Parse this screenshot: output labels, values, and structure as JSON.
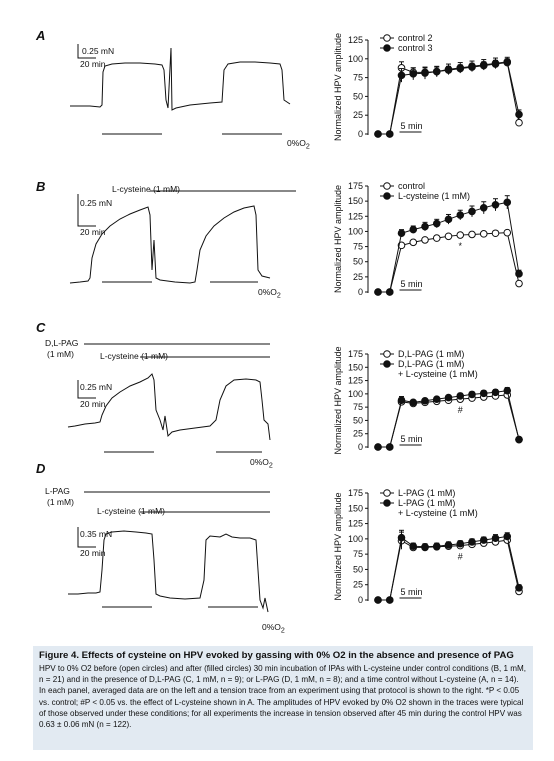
{
  "panels": [
    {
      "letter": "A",
      "trace": {
        "scale_force": "0.25 mN",
        "scale_time": "20 min",
        "o2_label": "0%O",
        "o2_sub": "2",
        "drug_labels": []
      },
      "chart": {
        "ylabel": "Normalized HPV amplitude",
        "yticks": [
          0,
          25,
          50,
          75,
          100,
          125
        ],
        "ymax": 125,
        "time_scale": "5 min",
        "annotation": "",
        "legend": [
          {
            "label": "control 2",
            "marker": "open"
          },
          {
            "label": "control 3",
            "marker": "filled"
          }
        ]
      }
    },
    {
      "letter": "B",
      "trace": {
        "scale_force": "0.25 mN",
        "scale_time": "20 min",
        "o2_label": "0%O",
        "o2_sub": "2",
        "drug_labels": [
          "L-cysteine (1 mM)"
        ]
      },
      "chart": {
        "ylabel": "Normalized HPV amplitude",
        "yticks": [
          0,
          25,
          50,
          75,
          100,
          125,
          150,
          175
        ],
        "ymax": 175,
        "time_scale": "5 min",
        "annotation": "*",
        "legend": [
          {
            "label": "control",
            "marker": "open"
          },
          {
            "label": "L-cysteine (1 mM)",
            "marker": "filled"
          }
        ]
      }
    },
    {
      "letter": "C",
      "trace": {
        "scale_force": "0.25 mN",
        "scale_time": "20 min",
        "o2_label": "0%O",
        "o2_sub": "2",
        "drug_labels": [
          "D,L-PAG",
          "(1 mM)",
          "L-cysteine (1 mM)"
        ]
      },
      "chart": {
        "ylabel": "Normalized HPV amplitude",
        "yticks": [
          0,
          25,
          50,
          75,
          100,
          125,
          150,
          175
        ],
        "ymax": 175,
        "time_scale": "5 min",
        "annotation": "#",
        "legend": [
          {
            "label": "D,L-PAG (1 mM)",
            "marker": "open"
          },
          {
            "label": "D,L-PAG (1 mM)",
            "marker": "filled"
          },
          {
            "label": "+ L-cysteine (1 mM)",
            "marker": "none"
          }
        ]
      }
    },
    {
      "letter": "D",
      "trace": {
        "scale_force": "0.35 mN",
        "scale_time": "20 min",
        "o2_label": "0%O",
        "o2_sub": "2",
        "drug_labels": [
          "L-PAG",
          "(1 mM)",
          "L-cysteine (1 mM)"
        ]
      },
      "chart": {
        "ylabel": "Normalized HPV amplitude",
        "yticks": [
          0,
          25,
          50,
          75,
          100,
          125,
          150,
          175
        ],
        "ymax": 175,
        "time_scale": "5 min",
        "annotation": "#",
        "legend": [
          {
            "label": "L-PAG (1 mM)",
            "marker": "open"
          },
          {
            "label": "L-PAG (1 mM)",
            "marker": "filled"
          },
          {
            "label": "+ L-cysteine (1 mM)",
            "marker": "none"
          }
        ]
      }
    }
  ],
  "chart_data": [
    {
      "type": "line",
      "panel": "A",
      "ylabel": "Normalized HPV amplitude",
      "ylim": [
        0,
        125
      ],
      "x": [
        0,
        1,
        2,
        3,
        4,
        5,
        6,
        7,
        8,
        9,
        10,
        11,
        12
      ],
      "series": [
        {
          "name": "control 2",
          "marker": "open",
          "values": [
            0,
            0,
            88,
            82,
            82,
            83,
            85,
            87,
            89,
            91,
            93,
            95,
            15
          ],
          "errors": [
            0,
            0,
            8,
            6,
            6,
            6,
            5,
            5,
            5,
            5,
            5,
            5,
            3
          ]
        },
        {
          "name": "control 3",
          "marker": "filled",
          "values": [
            0,
            0,
            78,
            80,
            81,
            83,
            86,
            88,
            90,
            92,
            94,
            96,
            26
          ],
          "errors": [
            0,
            0,
            9,
            8,
            8,
            7,
            7,
            7,
            7,
            7,
            7,
            6,
            6
          ]
        }
      ]
    },
    {
      "type": "line",
      "panel": "B",
      "ylabel": "Normalized HPV amplitude",
      "ylim": [
        0,
        175
      ],
      "x": [
        0,
        1,
        2,
        3,
        4,
        5,
        6,
        7,
        8,
        9,
        10,
        11,
        12
      ],
      "series": [
        {
          "name": "control",
          "marker": "open",
          "values": [
            0,
            0,
            77,
            82,
            86,
            89,
            92,
            94,
            95,
            96,
            97,
            98,
            14
          ],
          "errors": [
            0,
            0,
            4,
            3,
            3,
            3,
            3,
            3,
            3,
            3,
            3,
            3,
            3
          ]
        },
        {
          "name": "L-cysteine (1 mM)",
          "marker": "filled",
          "values": [
            0,
            0,
            97,
            103,
            108,
            113,
            120,
            127,
            133,
            139,
            144,
            148,
            30
          ],
          "errors": [
            0,
            0,
            6,
            6,
            7,
            7,
            8,
            8,
            9,
            10,
            10,
            11,
            6
          ]
        }
      ]
    },
    {
      "type": "line",
      "panel": "C",
      "ylabel": "Normalized HPV amplitude",
      "ylim": [
        0,
        175
      ],
      "x": [
        0,
        1,
        2,
        3,
        4,
        5,
        6,
        7,
        8,
        9,
        10,
        11,
        12
      ],
      "series": [
        {
          "name": "D,L-PAG (1 mM)",
          "marker": "open",
          "values": [
            0,
            0,
            85,
            82,
            84,
            86,
            88,
            90,
            92,
            94,
            96,
            98,
            14
          ],
          "errors": [
            0,
            0,
            5,
            3,
            3,
            3,
            3,
            3,
            3,
            3,
            3,
            3,
            3
          ]
        },
        {
          "name": "D,L-PAG (1 mM) + L-cysteine (1 mM)",
          "marker": "filled",
          "values": [
            0,
            0,
            88,
            84,
            87,
            90,
            93,
            96,
            99,
            101,
            103,
            106,
            14
          ],
          "errors": [
            0,
            0,
            7,
            4,
            4,
            4,
            4,
            5,
            5,
            5,
            5,
            6,
            3
          ]
        }
      ]
    },
    {
      "type": "line",
      "panel": "D",
      "ylabel": "Normalized HPV amplitude",
      "ylim": [
        0,
        175
      ],
      "x": [
        0,
        1,
        2,
        3,
        4,
        5,
        6,
        7,
        8,
        9,
        10,
        11,
        12
      ],
      "series": [
        {
          "name": "L-PAG (1 mM)",
          "marker": "open",
          "values": [
            0,
            0,
            97,
            86,
            86,
            87,
            88,
            89,
            91,
            93,
            95,
            98,
            14
          ],
          "errors": [
            0,
            0,
            14,
            4,
            4,
            4,
            4,
            4,
            4,
            4,
            4,
            4,
            4
          ]
        },
        {
          "name": "L-PAG (1 mM) + L-cysteine (1 mM)",
          "marker": "filled",
          "values": [
            0,
            0,
            102,
            88,
            87,
            88,
            90,
            92,
            95,
            98,
            101,
            104,
            20
          ],
          "errors": [
            0,
            0,
            12,
            5,
            5,
            5,
            5,
            5,
            5,
            5,
            6,
            6,
            5
          ]
        }
      ]
    }
  ],
  "caption": {
    "title": "Figure 4.  Effects of cysteine on HPV evoked by gassing with 0% O2 in the absence and presence of PAG",
    "body": "HPV to 0% O2 before (open circles) and after (filled circles) 30 min incubation of IPAs with L-cysteine under control conditions (B, 1 mM, n = 21) and in the presence of D,L-PAG (C, 1 mM, n = 9); or L-PAG (D, 1 mM, n = 8); and a time control without L-cysteine (A, n = 14). In each panel, averaged data are on the left and a tension trace from an experiment using that protocol is shown to the right. *P < 0.05 vs. control; #P < 0.05 vs. the effect of L-cysteine shown in A. The amplitudes of HPV evoked by 0% O2 shown in the traces were typical of those observed under these conditions; for all experiments the increase in tension observed after 45 min during the control HPV was 0.63 ± 0.06 mN (n = 122)."
  },
  "colors": {
    "caption_bg": "#e2eaf2",
    "ink": "#111111"
  }
}
